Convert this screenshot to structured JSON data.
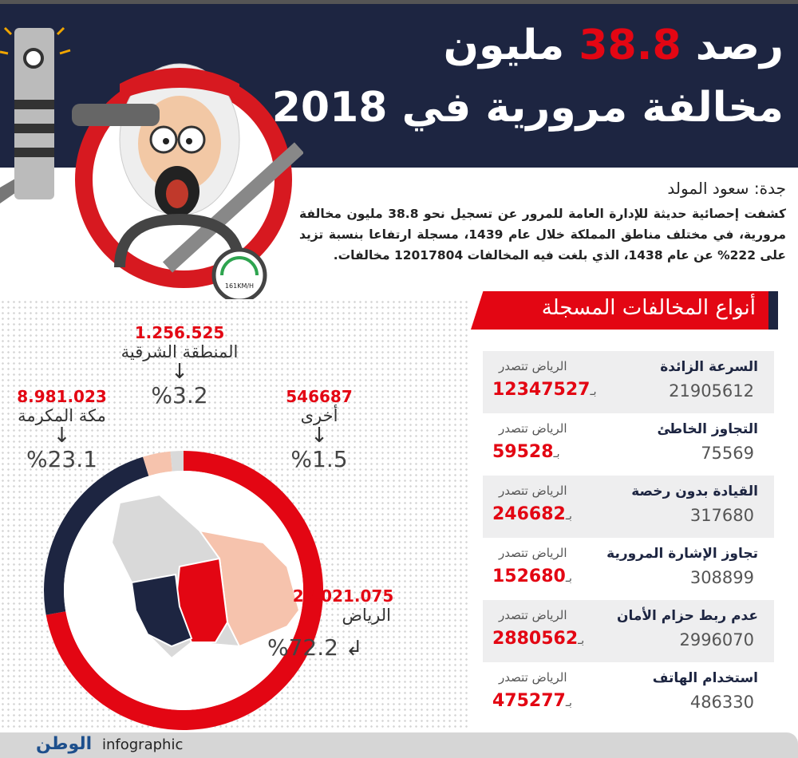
{
  "header": {
    "title_prefix": "رصد",
    "title_number": "38.8",
    "title_suffix": "مليون",
    "title_line2": "مخالفة مرورية في 2018"
  },
  "speedometer": {
    "label": "161KM/H"
  },
  "byline": "جدة: سعود المولد",
  "paragraph": "كشفت إحصائية حديثة للإدارة العامة للمرور عن تسجيل نحو 38.8 مليون مخالفة مرورية، في مختلف مناطق المملكة خلال عام 1439، مسجلة ارتفاعا بنسبة تزيد على 222% عن عام 1438، الذي بلغت فيه المخالفات 12017804 مخالفات.",
  "section_title": "أنواع المخالفات المسجلة",
  "violations": [
    {
      "name": "السرعة الزائدة",
      "total": "21905612",
      "leader_label": "الرياض تتصدر",
      "prefix": "بـ",
      "leader_value": "12347527"
    },
    {
      "name": "التجاوز الخاطئ",
      "total": "75569",
      "leader_label": "الرياض تتصدر",
      "prefix": "بـ",
      "leader_value": "59528"
    },
    {
      "name": "القيادة بدون رخصة",
      "total": "317680",
      "leader_label": "الرياض تتصدر",
      "prefix": "بـ",
      "leader_value": "246682"
    },
    {
      "name": "تجاوز الإشارة المرورية",
      "total": "308899",
      "leader_label": "الرياض تتصدر",
      "prefix": "بـ",
      "leader_value": "152680"
    },
    {
      "name": "عدم ربط حزام الأمان",
      "total": "2996070",
      "leader_label": "الرياض تتصدر",
      "prefix": "بـ",
      "leader_value": "2880562"
    },
    {
      "name": "استخدام الهاتف",
      "total": "486330",
      "leader_label": "الرياض تتصدر",
      "prefix": "بـ",
      "leader_value": "475277"
    }
  ],
  "chart_data": {
    "type": "pie",
    "style": "donut",
    "segments": [
      {
        "name": "الرياض",
        "value_label": "28.021.075",
        "percent": 72.2,
        "pct_label": "%72.2",
        "color": "#e30613"
      },
      {
        "name": "مكة المكرمة",
        "value_label": "8.981.023",
        "percent": 23.1,
        "pct_label": "%23.1",
        "color": "#1d2541"
      },
      {
        "name": "المنطقة الشرقية",
        "value_label": "1.256.525",
        "percent": 3.2,
        "pct_label": "%3.2",
        "color": "#f6c3ad"
      },
      {
        "name": "أخرى",
        "value_label": "546687",
        "percent": 1.5,
        "pct_label": "%1.5",
        "color": "#d9d9d9"
      }
    ]
  },
  "footer": {
    "logo": "الوطن",
    "label": "infographic"
  }
}
